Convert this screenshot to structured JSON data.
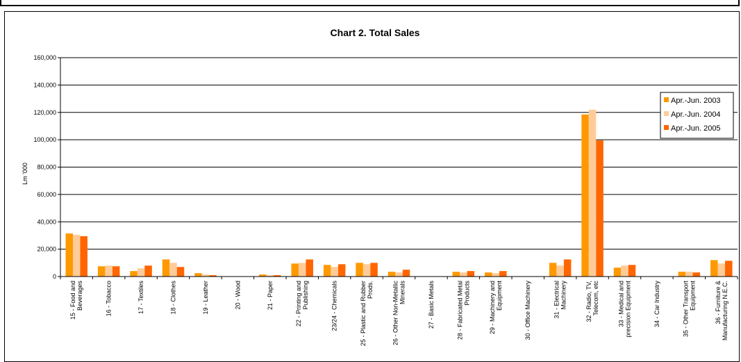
{
  "chart_data": {
    "type": "bar",
    "title": "Chart 2.  Total Sales",
    "ylabel": "Lm '000",
    "xlabel": "",
    "ylim": [
      0,
      160000
    ],
    "yticks": [
      "0",
      "20,000",
      "40,000",
      "60,000",
      "80,000",
      "100,000",
      "120,000",
      "140,000",
      "160,000"
    ],
    "grid": true,
    "legend_position": "right",
    "categories": [
      [
        "15 - Food and",
        "Beverages"
      ],
      [
        "16 - Tobacco"
      ],
      [
        "17 - Textiles"
      ],
      [
        "18 - Clothes"
      ],
      [
        "19 - Leather"
      ],
      [
        "20 - Wood"
      ],
      [
        "21 - Paper"
      ],
      [
        "22 - Printing and",
        "Publishing"
      ],
      [
        "23/24 - Chemicals"
      ],
      [
        "25 - Plastic and Rubber",
        "Prods."
      ],
      [
        "26 - Other Non-Metallic",
        "Minerals"
      ],
      [
        "27 - Basic Metals"
      ],
      [
        "28 - Fabricated Metal",
        "Products"
      ],
      [
        "29 - Machinery and",
        "Equipment"
      ],
      [
        "30 - Office Machinery"
      ],
      [
        "31 - Electrical",
        "Machinery"
      ],
      [
        "32 - Radio, TV,",
        "Telecom, etc"
      ],
      [
        "33 - Medical and",
        "precision Equipment"
      ],
      [
        "34 - Car Industry"
      ],
      [
        "35 - Other Transport",
        "Equipment"
      ],
      [
        "36 - Furniture &",
        "Manufacturing N.E.C."
      ]
    ],
    "series": [
      {
        "name": "Apr.-Jun. 2003",
        "color": "#ff9900",
        "values": [
          31500,
          7500,
          4000,
          12500,
          2500,
          0,
          1500,
          9500,
          8500,
          10000,
          3500,
          0,
          3500,
          3000,
          0,
          10000,
          118500,
          6500,
          0,
          3500,
          12000
        ]
      },
      {
        "name": "Apr.-Jun. 2004",
        "color": "#ffcc99",
        "values": [
          30500,
          8000,
          6000,
          10000,
          1500,
          0,
          1000,
          10000,
          7000,
          9000,
          3000,
          0,
          3000,
          2500,
          0,
          8000,
          122000,
          8000,
          0,
          3500,
          9500
        ]
      },
      {
        "name": "Apr.-Jun. 2005",
        "color": "#ff6600",
        "values": [
          29500,
          7500,
          8000,
          7000,
          1000,
          0,
          1000,
          12500,
          9000,
          10000,
          5000,
          0,
          4000,
          4000,
          0,
          12500,
          99500,
          8500,
          0,
          3000,
          11500
        ]
      }
    ]
  }
}
